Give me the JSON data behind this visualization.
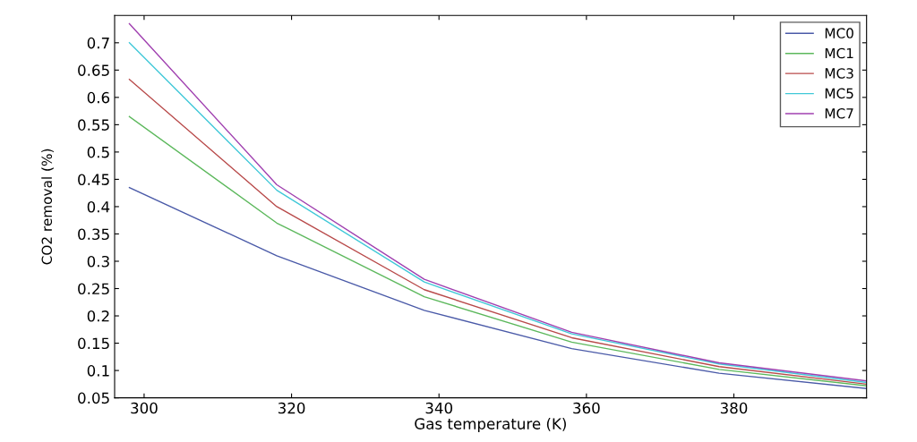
{
  "chart_data": {
    "type": "line",
    "xlabel": "Gas temperature (K)",
    "ylabel": "CO2 removal (%)",
    "x": [
      298,
      318,
      338,
      358,
      378,
      398
    ],
    "xlim": [
      296,
      398
    ],
    "xticks": [
      300,
      320,
      340,
      360,
      380
    ],
    "ylim": [
      0.05,
      0.75
    ],
    "yticks": [
      0.05,
      0.1,
      0.15,
      0.2,
      0.25,
      0.3,
      0.35,
      0.4,
      0.45,
      0.5,
      0.55,
      0.6,
      0.65,
      0.7
    ],
    "grid": false,
    "legend": "top right",
    "marker": "none",
    "line_style": "solid",
    "series": [
      {
        "name": "MC0",
        "color": "#4a5aa8",
        "values": [
          0.435,
          0.31,
          0.21,
          0.14,
          0.095,
          0.067
        ]
      },
      {
        "name": "MC1",
        "color": "#5cb85c",
        "values": [
          0.565,
          0.37,
          0.235,
          0.152,
          0.102,
          0.072
        ]
      },
      {
        "name": "MC3",
        "color": "#b84a4a",
        "values": [
          0.633,
          0.4,
          0.248,
          0.16,
          0.107,
          0.075
        ]
      },
      {
        "name": "MC5",
        "color": "#40c8d8",
        "values": [
          0.7,
          0.43,
          0.262,
          0.167,
          0.112,
          0.078
        ]
      },
      {
        "name": "MC7",
        "color": "#a040b0",
        "values": [
          0.735,
          0.44,
          0.267,
          0.17,
          0.114,
          0.081
        ]
      }
    ]
  }
}
